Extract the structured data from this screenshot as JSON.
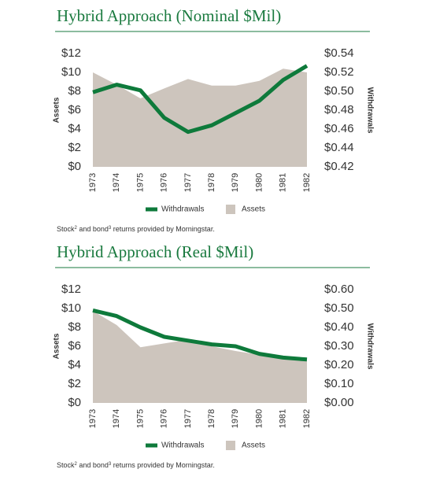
{
  "chart_data": [
    {
      "type": "area",
      "title": "Hybrid Approach (Nominal $Mil)",
      "categories": [
        "1973",
        "1974",
        "1975",
        "1976",
        "1977",
        "1978",
        "1979",
        "1980",
        "1981",
        "1982"
      ],
      "series": [
        {
          "name": "Withdrawals",
          "type": "line",
          "axis": "y2",
          "color": "#0e7a3b",
          "values": [
            0.499,
            0.507,
            0.501,
            0.472,
            0.457,
            0.464,
            0.477,
            0.49,
            0.512,
            0.527
          ]
        },
        {
          "name": "Assets",
          "type": "area",
          "color": "#cdc5bd",
          "values": [
            10,
            8.7,
            7.25,
            8.3,
            9.3,
            8.6,
            8.6,
            9.1,
            10.4,
            10
          ]
        }
      ],
      "ylabel": "Assets",
      "y2label": "Withdrawals",
      "ylim": [
        0,
        12
      ],
      "yticks": [
        {
          "value": 0,
          "label": "$0"
        },
        {
          "value": 2,
          "label": "$2"
        },
        {
          "value": 4,
          "label": "$4"
        },
        {
          "value": 6,
          "label": "$6"
        },
        {
          "value": 8,
          "label": "$8"
        },
        {
          "value": 10,
          "label": "$10"
        },
        {
          "value": 12,
          "label": "$12"
        }
      ],
      "y2lim": [
        0.42,
        0.54
      ],
      "y2ticks": [
        {
          "value": 0.42,
          "label": "$0.42"
        },
        {
          "value": 0.44,
          "label": "$0.44"
        },
        {
          "value": 0.46,
          "label": "$0.46"
        },
        {
          "value": 0.48,
          "label": "$0.48"
        },
        {
          "value": 0.5,
          "label": "$0.50"
        },
        {
          "value": 0.52,
          "label": "$0.52"
        },
        {
          "value": 0.54,
          "label": "$0.54"
        }
      ],
      "note": [
        "Stock",
        "2",
        " and bond",
        "3",
        " returns provided by Morningstar."
      ]
    },
    {
      "type": "area",
      "title": "Hybrid Approach (Real $Mil)",
      "categories": [
        "1973",
        "1974",
        "1975",
        "1976",
        "1977",
        "1978",
        "1979",
        "1980",
        "1981",
        "1982"
      ],
      "series": [
        {
          "name": "Withdrawals",
          "type": "line",
          "axis": "y2",
          "color": "#0e7a3b",
          "values": [
            0.49,
            0.46,
            0.4,
            0.35,
            0.33,
            0.31,
            0.3,
            0.26,
            0.24,
            0.23
          ]
        },
        {
          "name": "Assets",
          "type": "area",
          "color": "#cdc5bd",
          "values": [
            9.75,
            8.25,
            5.9,
            6.3,
            6.7,
            6.0,
            5.5,
            5.1,
            4.7,
            4.5
          ]
        }
      ],
      "ylabel": "Assets",
      "y2label": "Withdrawals",
      "ylim": [
        0,
        12
      ],
      "yticks": [
        {
          "value": 0,
          "label": "$0"
        },
        {
          "value": 2,
          "label": "$2"
        },
        {
          "value": 4,
          "label": "$4"
        },
        {
          "value": 6,
          "label": "$6"
        },
        {
          "value": 8,
          "label": "$8"
        },
        {
          "value": 10,
          "label": "$10"
        },
        {
          "value": 12,
          "label": "$12"
        }
      ],
      "y2lim": [
        0,
        0.6
      ],
      "y2ticks": [
        {
          "value": 0,
          "label": "$0.00"
        },
        {
          "value": 0.1,
          "label": "$0.10"
        },
        {
          "value": 0.2,
          "label": "$0.20"
        },
        {
          "value": 0.3,
          "label": "$0.30"
        },
        {
          "value": 0.4,
          "label": "$0.40"
        },
        {
          "value": 0.5,
          "label": "$0.50"
        },
        {
          "value": 0.6,
          "label": "$0.60"
        }
      ],
      "note": [
        "Stock",
        "2",
        " and bond",
        "3",
        " returns provided by Morningstar."
      ]
    }
  ]
}
